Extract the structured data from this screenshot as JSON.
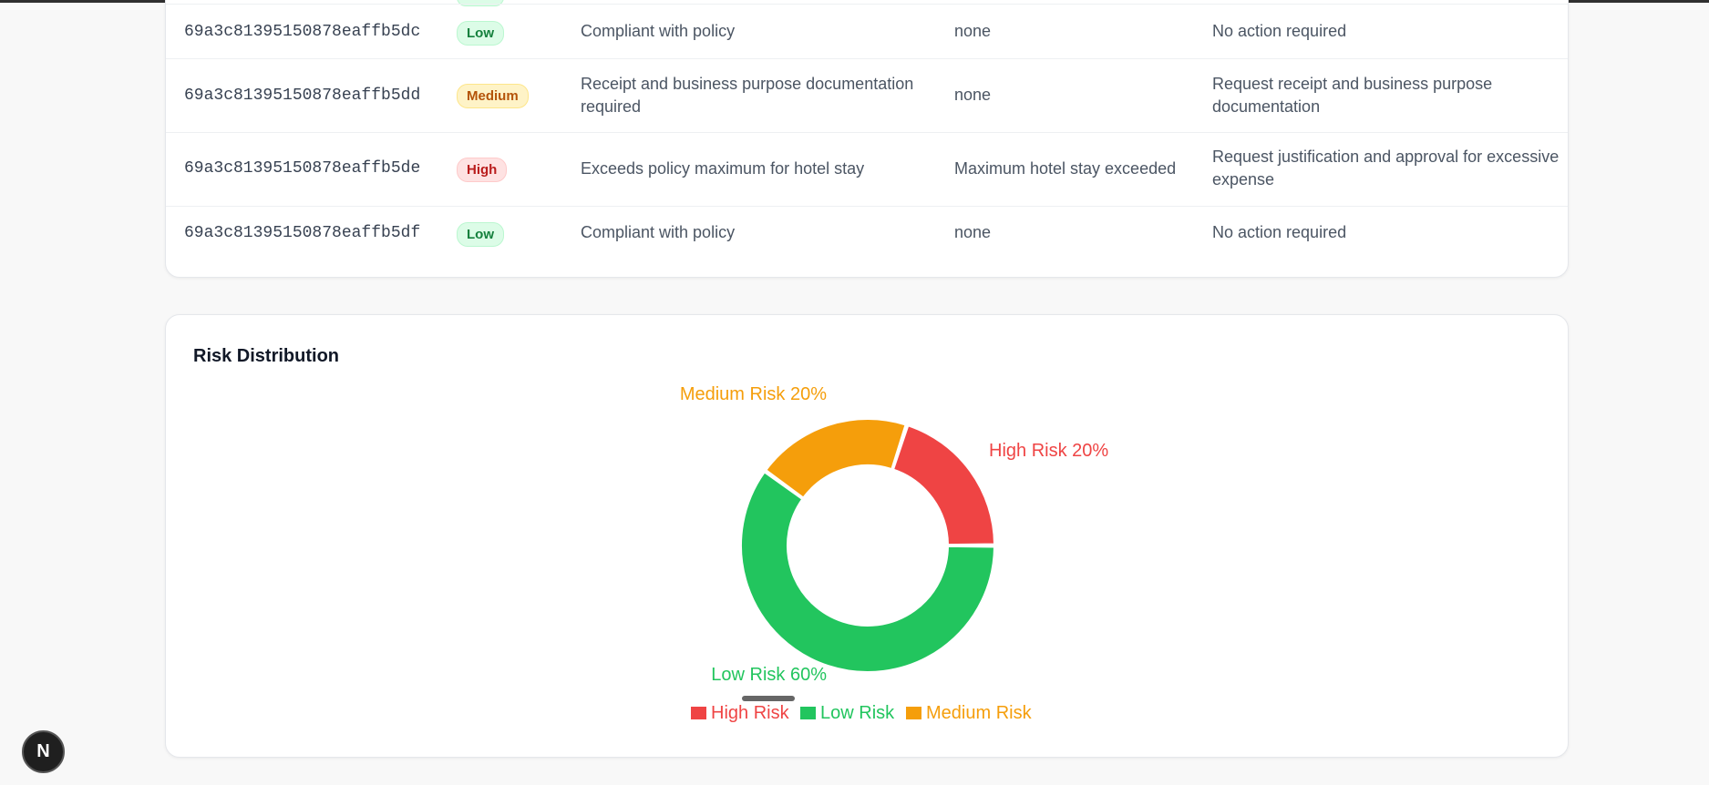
{
  "table": {
    "rows": [
      {
        "id": "69a3c81395150878eaffb5dc",
        "risk": "Low",
        "risk_class": "low",
        "reason": "Compliant with policy",
        "issue": "none",
        "action": "No action required"
      },
      {
        "id": "69a3c81395150878eaffb5dd",
        "risk": "Medium",
        "risk_class": "medium",
        "reason": "Receipt and business purpose documentation required",
        "issue": "none",
        "action": "Request receipt and business purpose documentation"
      },
      {
        "id": "69a3c81395150878eaffb5de",
        "risk": "High",
        "risk_class": "high",
        "reason": "Exceeds policy maximum for hotel stay",
        "issue": "Maximum hotel stay exceeded",
        "action": "Request justification and approval for excessive expense"
      },
      {
        "id": "69a3c81395150878eaffb5df",
        "risk": "Low",
        "risk_class": "low",
        "reason": "Compliant with policy",
        "issue": "none",
        "action": "No action required"
      }
    ]
  },
  "chart_section": {
    "title": "Risk Distribution"
  },
  "chart_data": {
    "type": "pie",
    "donut": true,
    "title": "Risk Distribution",
    "categories": [
      "High Risk",
      "Low Risk",
      "Medium Risk"
    ],
    "values": [
      20,
      60,
      20
    ],
    "colors": [
      "#ef4444",
      "#22c55e",
      "#f59e0b"
    ],
    "slice_labels": [
      "High Risk 20%",
      "Low Risk 60%",
      "Medium Risk 20%"
    ],
    "legend": [
      "High Risk",
      "Low Risk",
      "Medium Risk"
    ],
    "legend_position": "bottom"
  },
  "fab": {
    "label": "N"
  }
}
